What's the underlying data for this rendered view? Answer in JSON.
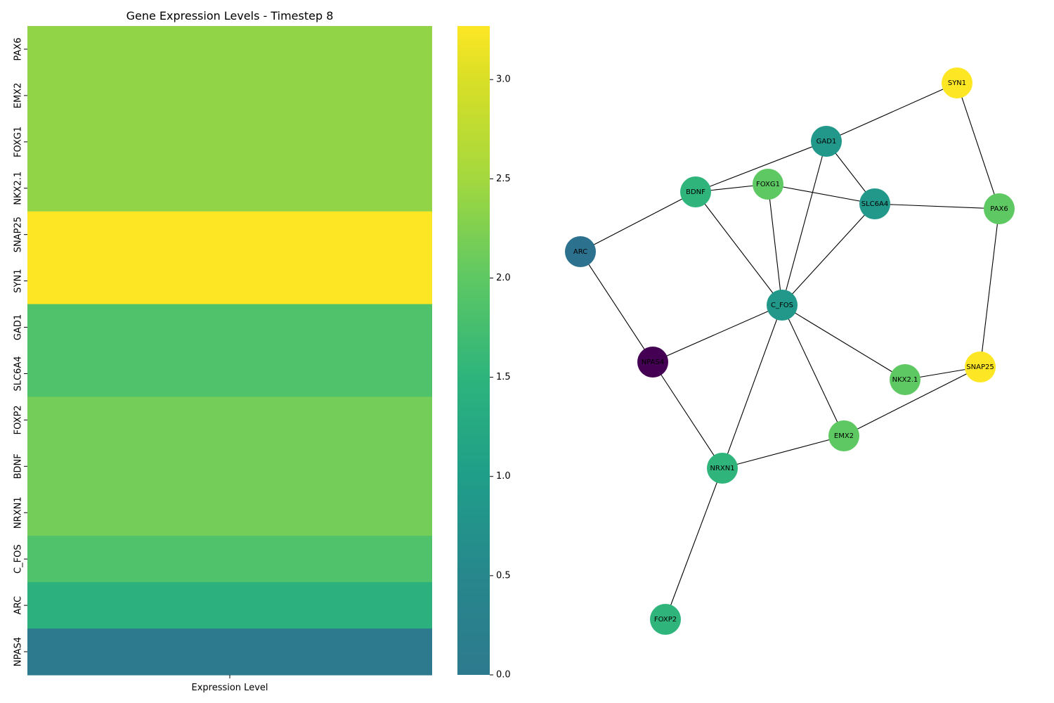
{
  "chart_data": [
    {
      "type": "heatmap",
      "title": "Gene Expression Levels - Timestep 8",
      "xlabel": "Expression Level",
      "ylabel": "",
      "rows": [
        "PAX6",
        "EMX2",
        "FOXG1",
        "NKX2.1",
        "SNAP25",
        "SYN1",
        "GAD1",
        "SLC6A4",
        "FOXP2",
        "BDNF",
        "NRXN1",
        "C_FOS",
        "ARC",
        "NPAS4"
      ],
      "values": [
        2.38,
        2.38,
        2.38,
        2.38,
        3.27,
        3.27,
        1.85,
        1.85,
        2.15,
        2.15,
        2.15,
        1.85,
        1.42,
        0.0
      ],
      "colorbar": {
        "colormap": "viridis (clipped)",
        "vmin": 0.0,
        "vmax": 3.27,
        "ticks": [
          0.0,
          0.5,
          1.0,
          1.5,
          2.0,
          2.5,
          3.0
        ],
        "tick_labels": [
          "0.0",
          "0.5",
          "1.0",
          "1.5",
          "2.0",
          "2.5",
          "3.0"
        ],
        "color_stops": [
          {
            "value": 0.0,
            "color": "#2d7a8e"
          },
          {
            "value": 0.5,
            "color": "#27878c"
          },
          {
            "value": 1.0,
            "color": "#1f9e89"
          },
          {
            "value": 1.5,
            "color": "#2db47c"
          },
          {
            "value": 2.0,
            "color": "#5ec863"
          },
          {
            "value": 2.5,
            "color": "#a3d83e"
          },
          {
            "value": 3.0,
            "color": "#d9df26"
          },
          {
            "value": 3.27,
            "color": "#fde725"
          }
        ]
      }
    },
    {
      "type": "network",
      "nodes": [
        {
          "id": "SYN1",
          "color": "#fde725"
        },
        {
          "id": "GAD1",
          "color": "#21988a"
        },
        {
          "id": "BDNF",
          "color": "#2fb47c"
        },
        {
          "id": "FOXG1",
          "color": "#5ec962"
        },
        {
          "id": "SLC6A4",
          "color": "#21988a"
        },
        {
          "id": "PAX6",
          "color": "#5ec962"
        },
        {
          "id": "ARC",
          "color": "#2c728e"
        },
        {
          "id": "C_FOS",
          "color": "#21988a"
        },
        {
          "id": "NPAS4",
          "color": "#440154"
        },
        {
          "id": "NKX2.1",
          "color": "#5ec962"
        },
        {
          "id": "SNAP25",
          "color": "#fde725"
        },
        {
          "id": "EMX2",
          "color": "#5ec962"
        },
        {
          "id": "NRXN1",
          "color": "#2fb47c"
        },
        {
          "id": "FOXP2",
          "color": "#2fb47c"
        }
      ],
      "edges": [
        [
          "SYN1",
          "GAD1"
        ],
        [
          "SYN1",
          "PAX6"
        ],
        [
          "GAD1",
          "BDNF"
        ],
        [
          "GAD1",
          "SLC6A4"
        ],
        [
          "GAD1",
          "C_FOS"
        ],
        [
          "BDNF",
          "FOXG1"
        ],
        [
          "BDNF",
          "ARC"
        ],
        [
          "BDNF",
          "C_FOS"
        ],
        [
          "FOXG1",
          "SLC6A4"
        ],
        [
          "FOXG1",
          "C_FOS"
        ],
        [
          "SLC6A4",
          "PAX6"
        ],
        [
          "SLC6A4",
          "C_FOS"
        ],
        [
          "PAX6",
          "SNAP25"
        ],
        [
          "ARC",
          "NPAS4"
        ],
        [
          "C_FOS",
          "NPAS4"
        ],
        [
          "C_FOS",
          "NKX2.1"
        ],
        [
          "C_FOS",
          "EMX2"
        ],
        [
          "C_FOS",
          "NRXN1"
        ],
        [
          "NPAS4",
          "NRXN1"
        ],
        [
          "NKX2.1",
          "SNAP25"
        ],
        [
          "SNAP25",
          "EMX2"
        ],
        [
          "EMX2",
          "NRXN1"
        ],
        [
          "NRXN1",
          "FOXP2"
        ]
      ]
    }
  ]
}
